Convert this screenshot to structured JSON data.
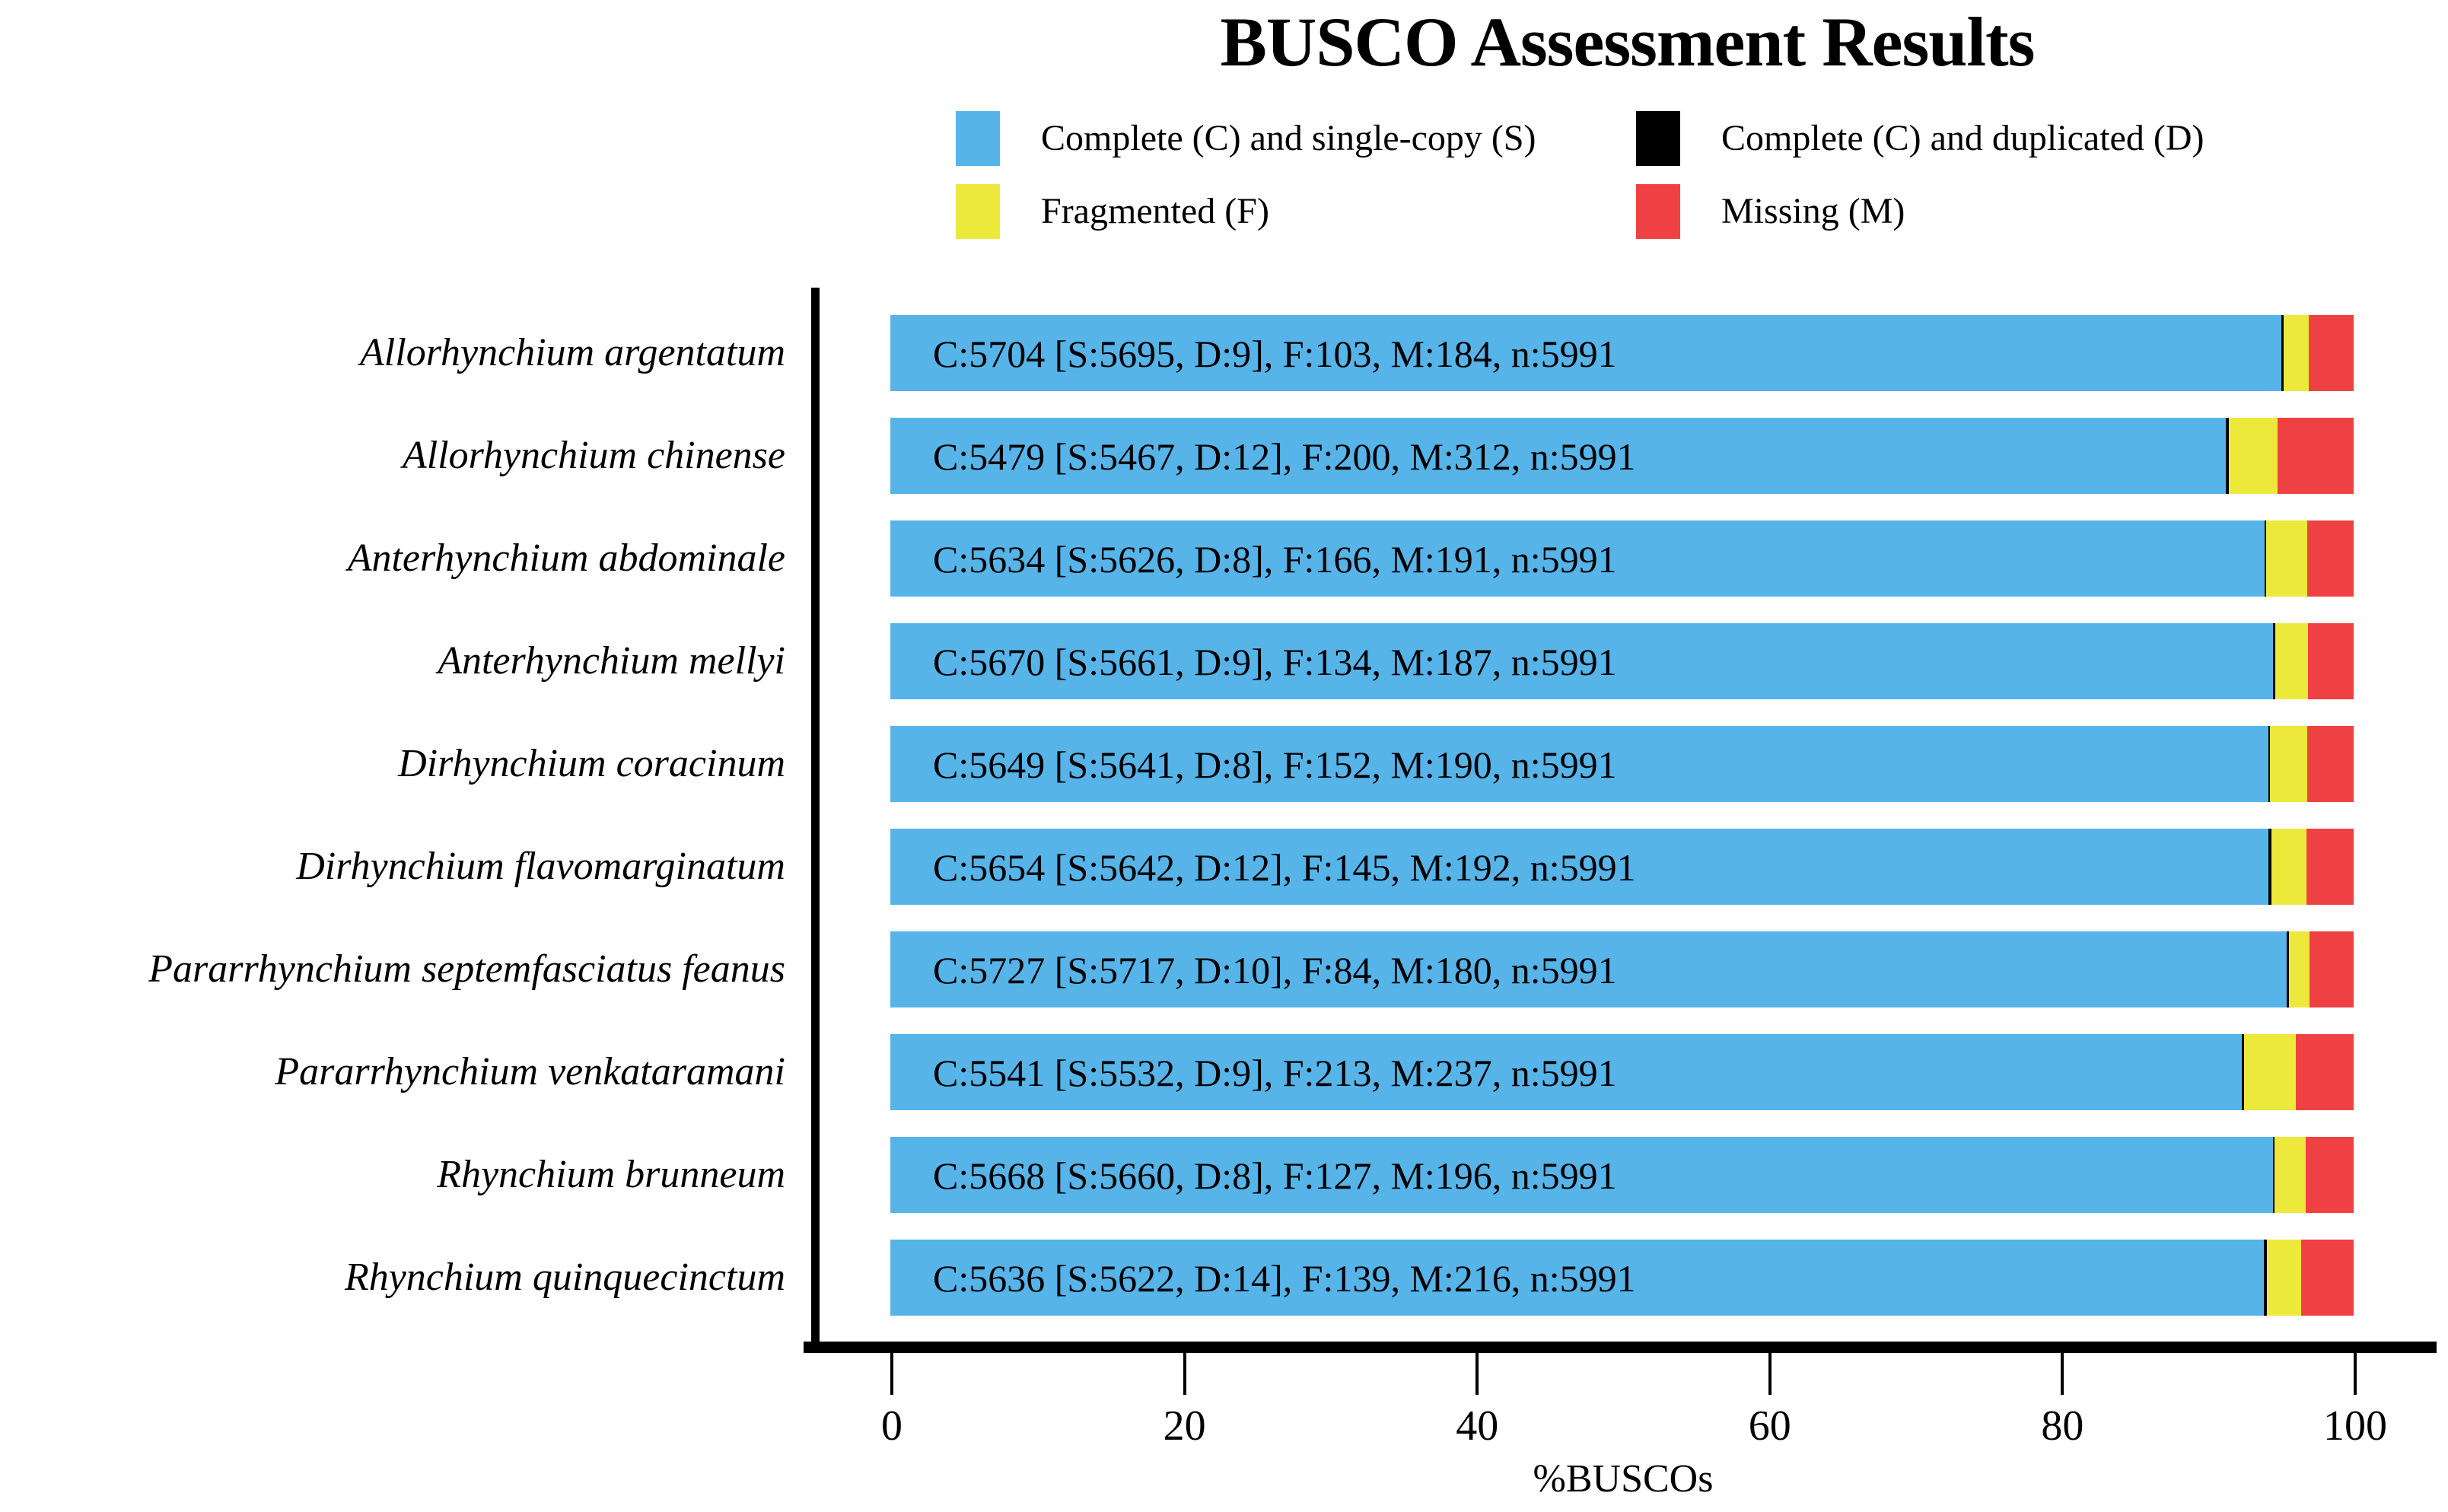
{
  "figure": {
    "title": "BUSCO Assessment Results"
  },
  "chart_data": {
    "type": "bar",
    "orientation": "horizontal",
    "stacked": true,
    "title": "BUSCO Assessment Results",
    "xlabel": "%BUSCOs",
    "xlim": [
      0,
      100
    ],
    "x_ticks": [
      0,
      20,
      40,
      60,
      80,
      100
    ],
    "grid": false,
    "legend_position": "top",
    "n_markers": 5991,
    "colors": {
      "complete_single": "#56B4E9",
      "complete_duplicated": "#000000",
      "fragmented": "#EDE93B",
      "missing": "#EF4143"
    },
    "legend": [
      {
        "key": "complete_single",
        "label": "Complete (C) and single-copy (S)"
      },
      {
        "key": "complete_duplicated",
        "label": "Complete (C) and duplicated (D)"
      },
      {
        "key": "fragmented",
        "label": "Fragmented (F)"
      },
      {
        "key": "missing",
        "label": "Missing (M)"
      }
    ],
    "series_order": [
      "S",
      "D",
      "F",
      "M"
    ],
    "rows": [
      {
        "species": "Allorhynchium argentatum",
        "C": 5704,
        "S": 5695,
        "D": 9,
        "F": 103,
        "M": 184,
        "n": 5991,
        "bar_label": "C:5704 [S:5695, D:9], F:103, M:184, n:5991"
      },
      {
        "species": "Allorhynchium chinense",
        "C": 5479,
        "S": 5467,
        "D": 12,
        "F": 200,
        "M": 312,
        "n": 5991,
        "bar_label": "C:5479 [S:5467, D:12], F:200, M:312, n:5991"
      },
      {
        "species": "Anterhynchium abdominale",
        "C": 5634,
        "S": 5626,
        "D": 8,
        "F": 166,
        "M": 191,
        "n": 5991,
        "bar_label": "C:5634 [S:5626, D:8], F:166, M:191, n:5991"
      },
      {
        "species": "Anterhynchium mellyi",
        "C": 5670,
        "S": 5661,
        "D": 9,
        "F": 134,
        "M": 187,
        "n": 5991,
        "bar_label": "C:5670 [S:5661, D:9], F:134, M:187, n:5991"
      },
      {
        "species": "Dirhynchium coracinum",
        "C": 5649,
        "S": 5641,
        "D": 8,
        "F": 152,
        "M": 190,
        "n": 5991,
        "bar_label": "C:5649 [S:5641, D:8], F:152, M:190, n:5991"
      },
      {
        "species": "Dirhynchium flavomarginatum",
        "C": 5654,
        "S": 5642,
        "D": 12,
        "F": 145,
        "M": 192,
        "n": 5991,
        "bar_label": "C:5654 [S:5642, D:12], F:145, M:192, n:5991"
      },
      {
        "species": "Pararrhynchium septemfasciatus feanus",
        "C": 5727,
        "S": 5717,
        "D": 10,
        "F": 84,
        "M": 180,
        "n": 5991,
        "bar_label": "C:5727 [S:5717, D:10], F:84, M:180, n:5991"
      },
      {
        "species": "Pararrhynchium venkataramani",
        "C": 5541,
        "S": 5532,
        "D": 9,
        "F": 213,
        "M": 237,
        "n": 5991,
        "bar_label": "C:5541 [S:5532, D:9], F:213, M:237, n:5991"
      },
      {
        "species": "Rhynchium brunneum",
        "C": 5668,
        "S": 5660,
        "D": 8,
        "F": 127,
        "M": 196,
        "n": 5991,
        "bar_label": "C:5668 [S:5660, D:8], F:127, M:196, n:5991"
      },
      {
        "species": "Rhynchium quinquecinctum",
        "C": 5636,
        "S": 5622,
        "D": 14,
        "F": 139,
        "M": 216,
        "n": 5991,
        "bar_label": "C:5636 [S:5622, D:14], F:139, M:216, n:5991"
      }
    ]
  }
}
